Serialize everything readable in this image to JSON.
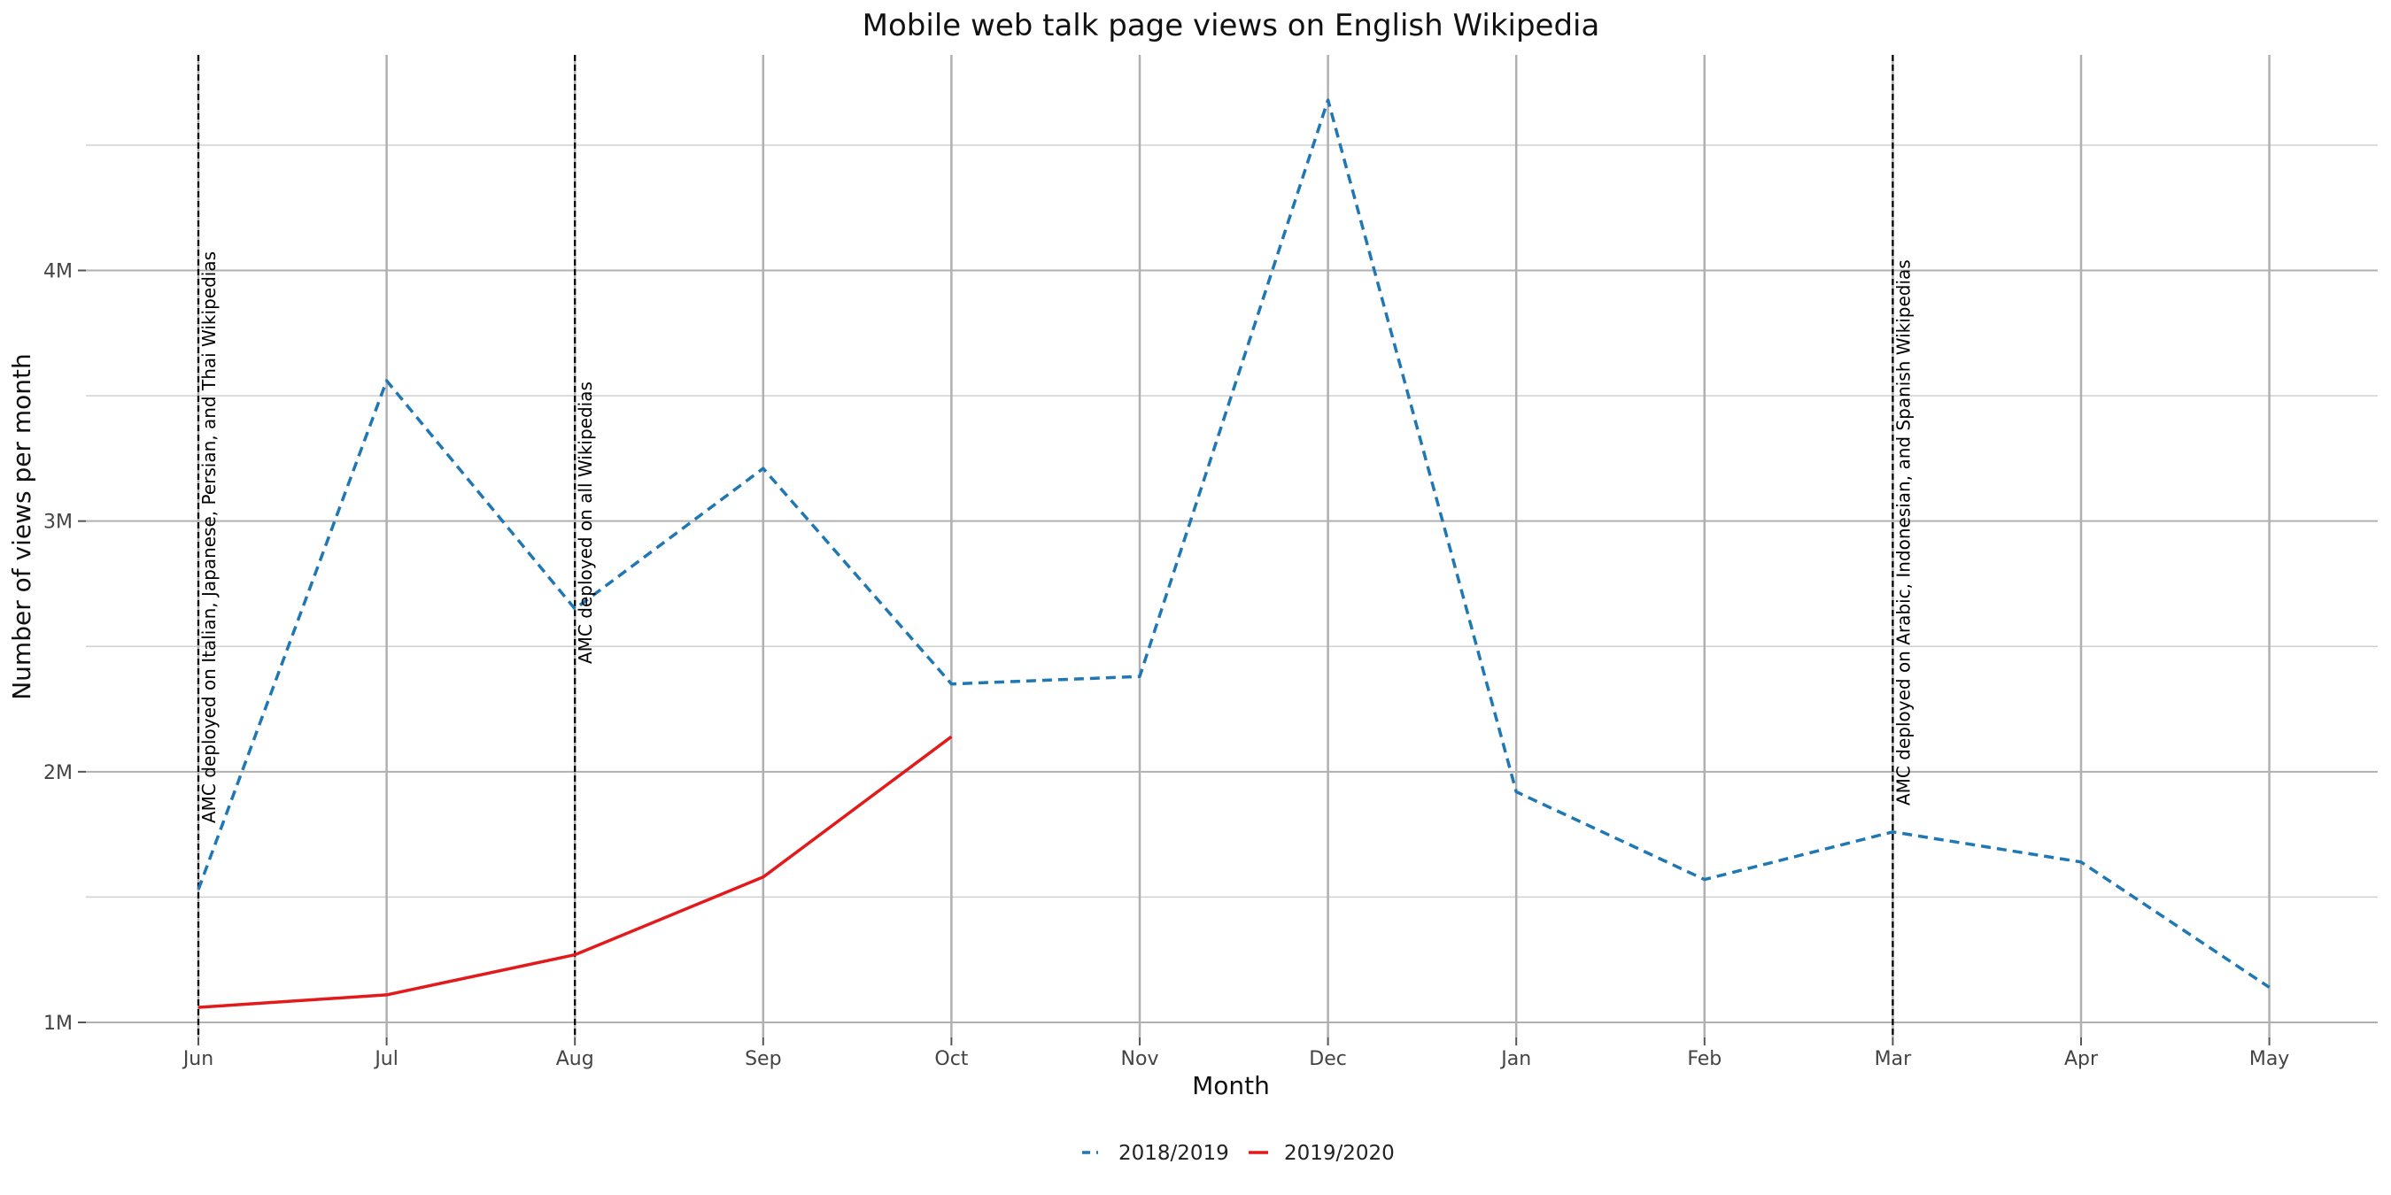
{
  "chart_data": {
    "type": "line",
    "title": "Mobile web talk page views on English Wikipedia",
    "xlabel": "Month",
    "ylabel": "Number of views per month",
    "categories": [
      "Jun",
      "Jul",
      "Aug",
      "Sep",
      "Oct",
      "Nov",
      "Dec",
      "Jan",
      "Feb",
      "Mar",
      "Apr",
      "May"
    ],
    "y_ticks": [
      {
        "value": 1000000,
        "label": "1M"
      },
      {
        "value": 2000000,
        "label": "2M"
      },
      {
        "value": 3000000,
        "label": "3M"
      },
      {
        "value": 4000000,
        "label": "4M"
      }
    ],
    "ylim": [
      940000,
      4860000
    ],
    "grid": true,
    "legend_position": "bottom",
    "series": [
      {
        "name": "2018/2019",
        "color": "#1f77b4",
        "line_style": "dashed",
        "values": [
          1530000,
          3560000,
          2650000,
          3210000,
          2350000,
          2380000,
          4680000,
          1920000,
          1570000,
          1760000,
          1640000,
          1140000
        ]
      },
      {
        "name": "2019/2020",
        "color": "#e31a1c",
        "line_style": "solid",
        "values": [
          1060000,
          1110000,
          1270000,
          1580000,
          2140000,
          null,
          null,
          null,
          null,
          null,
          null,
          null
        ]
      }
    ],
    "annotations": [
      {
        "category": "Jun",
        "text": "AMC deployed on Italian, Japanese, Persian, and Thai Wikipedias"
      },
      {
        "category": "Aug",
        "text": "AMC deployed on all Wikipedias"
      },
      {
        "category": "Mar",
        "text": "AMC deployed on Arabic, Indonesian, and Spanish Wikipedias"
      }
    ]
  }
}
